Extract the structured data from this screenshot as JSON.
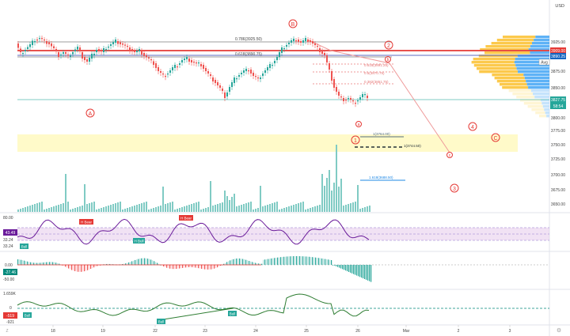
{
  "currency": "USD",
  "price_axis": [
    "3925.00",
    "3875.00",
    "3850.00",
    "3800.00",
    "3775.00",
    "3750.00",
    "3725.00",
    "3700.00",
    "3675.00",
    "3650.00"
  ],
  "price_tags": [
    {
      "label": "3909.00",
      "bg": "#e53935",
      "fg": "#ffffff"
    },
    {
      "label": "3890.25",
      "bg": "#1565c0",
      "fg": "#ffffff"
    },
    {
      "label": "3827.75",
      "bg": "#26a69a",
      "fg": "#ffffff"
    },
    {
      "label": "58:54",
      "bg": "#26a69a",
      "fg": "#ffffff"
    }
  ],
  "avg_label": "Avg",
  "fib_levels": [
    {
      "label": "0.786(3925.50)"
    },
    {
      "label": "0.618(3890.75)"
    },
    {
      "label": "0.618(3891.25)"
    },
    {
      "label": "0.5(3870.75)"
    },
    {
      "label": "0.382(3851.75)"
    },
    {
      "label": "1(3764.00)"
    },
    {
      "label": "1(3744.50)"
    },
    {
      "label": "1.618(3688.50)"
    }
  ],
  "wave_labels": [
    "A",
    "B",
    "C",
    "2",
    "4",
    "3",
    "1",
    "a",
    "b",
    "c"
  ],
  "rsi": {
    "top": "80.00",
    "value": "43.49",
    "l1": "33.24",
    "l2": "33.24",
    "tags": [
      "H Bear",
      "H Bear",
      "H Bull",
      "Bull"
    ]
  },
  "macd": {
    "zero": "0.00",
    "value": "-27.46",
    "low": "-50.00"
  },
  "obv": {
    "top": "1.659K",
    "zero": "0",
    "value": "-519",
    "low": "-921",
    "tags": [
      "Bull",
      "Bull",
      "Bull"
    ]
  },
  "time_axis": [
    "18",
    "19",
    "22",
    "23",
    "24",
    "25",
    "26",
    "Mar",
    "2",
    "3"
  ],
  "corner_label": "Z"
}
